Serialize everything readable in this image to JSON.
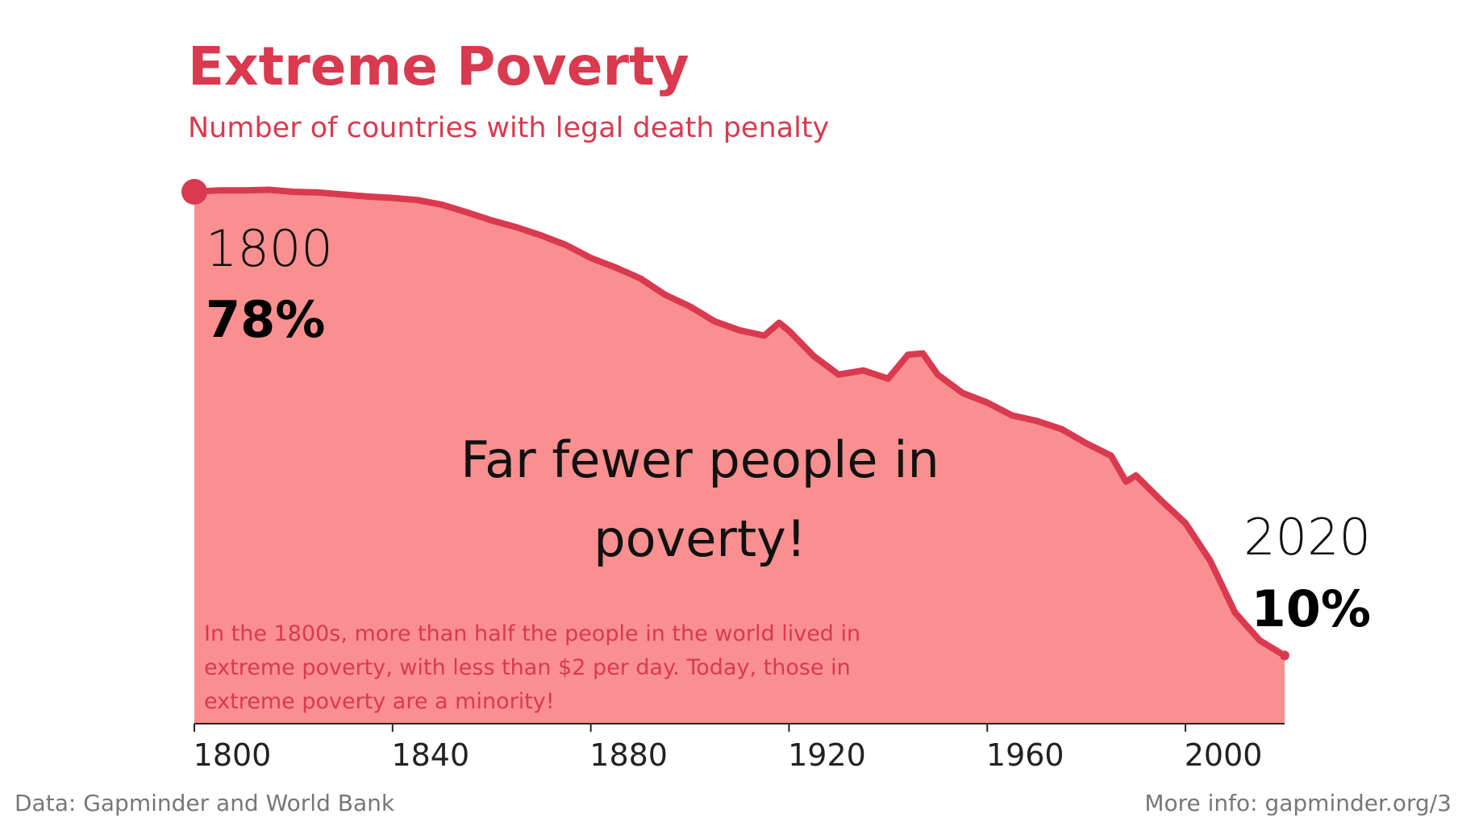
{
  "title": "Extreme Poverty",
  "subtitle": "Number of countries with legal death penalty",
  "start_label": {
    "year": "1800",
    "value": "78%"
  },
  "end_label": {
    "year": "2020",
    "value": "10%"
  },
  "headline": [
    "Far fewer people in",
    "poverty!"
  ],
  "note": [
    "In the 1800s, more than half the people in the world lived in",
    "extreme poverty, with less than $2 per day. Today, those in",
    "extreme poverty are a minority!"
  ],
  "footer": {
    "source": "Data: Gapminder and World Bank",
    "more_info": "More info: gapminder.org/3"
  },
  "colors": {
    "line": "#d93a4f",
    "area": "#fa8f8f",
    "axis": "#222222",
    "accent_text": "#d93a4f"
  },
  "chart_data": {
    "type": "area",
    "x": [
      1800,
      1805,
      1810,
      1815,
      1820,
      1825,
      1830,
      1835,
      1840,
      1845,
      1850,
      1855,
      1860,
      1865,
      1870,
      1875,
      1880,
      1885,
      1890,
      1895,
      1900,
      1905,
      1910,
      1915,
      1918,
      1920,
      1925,
      1930,
      1935,
      1940,
      1944,
      1947,
      1950,
      1955,
      1960,
      1965,
      1970,
      1975,
      1980,
      1985,
      1988,
      1990,
      1995,
      2000,
      2005,
      2010,
      2015,
      2020
    ],
    "y": [
      78.0,
      78.2,
      78.2,
      78.3,
      78.0,
      77.9,
      77.6,
      77.3,
      77.1,
      76.8,
      76.1,
      75.0,
      73.8,
      72.8,
      71.6,
      70.2,
      68.3,
      66.9,
      65.3,
      62.9,
      61.2,
      59.0,
      57.7,
      56.9,
      58.8,
      57.6,
      53.9,
      51.2,
      51.8,
      50.6,
      54.1,
      54.3,
      51.2,
      48.5,
      47.1,
      45.2,
      44.4,
      43.2,
      41.1,
      39.3,
      35.5,
      36.4,
      32.8,
      29.4,
      23.9,
      16.3,
      12.2,
      10.0
    ],
    "xlim": [
      1800,
      2020
    ],
    "ylim": [
      0,
      78
    ],
    "xticks": [
      "1800",
      "1840",
      "1880",
      "1920",
      "1960",
      "2000"
    ],
    "grid": false
  }
}
